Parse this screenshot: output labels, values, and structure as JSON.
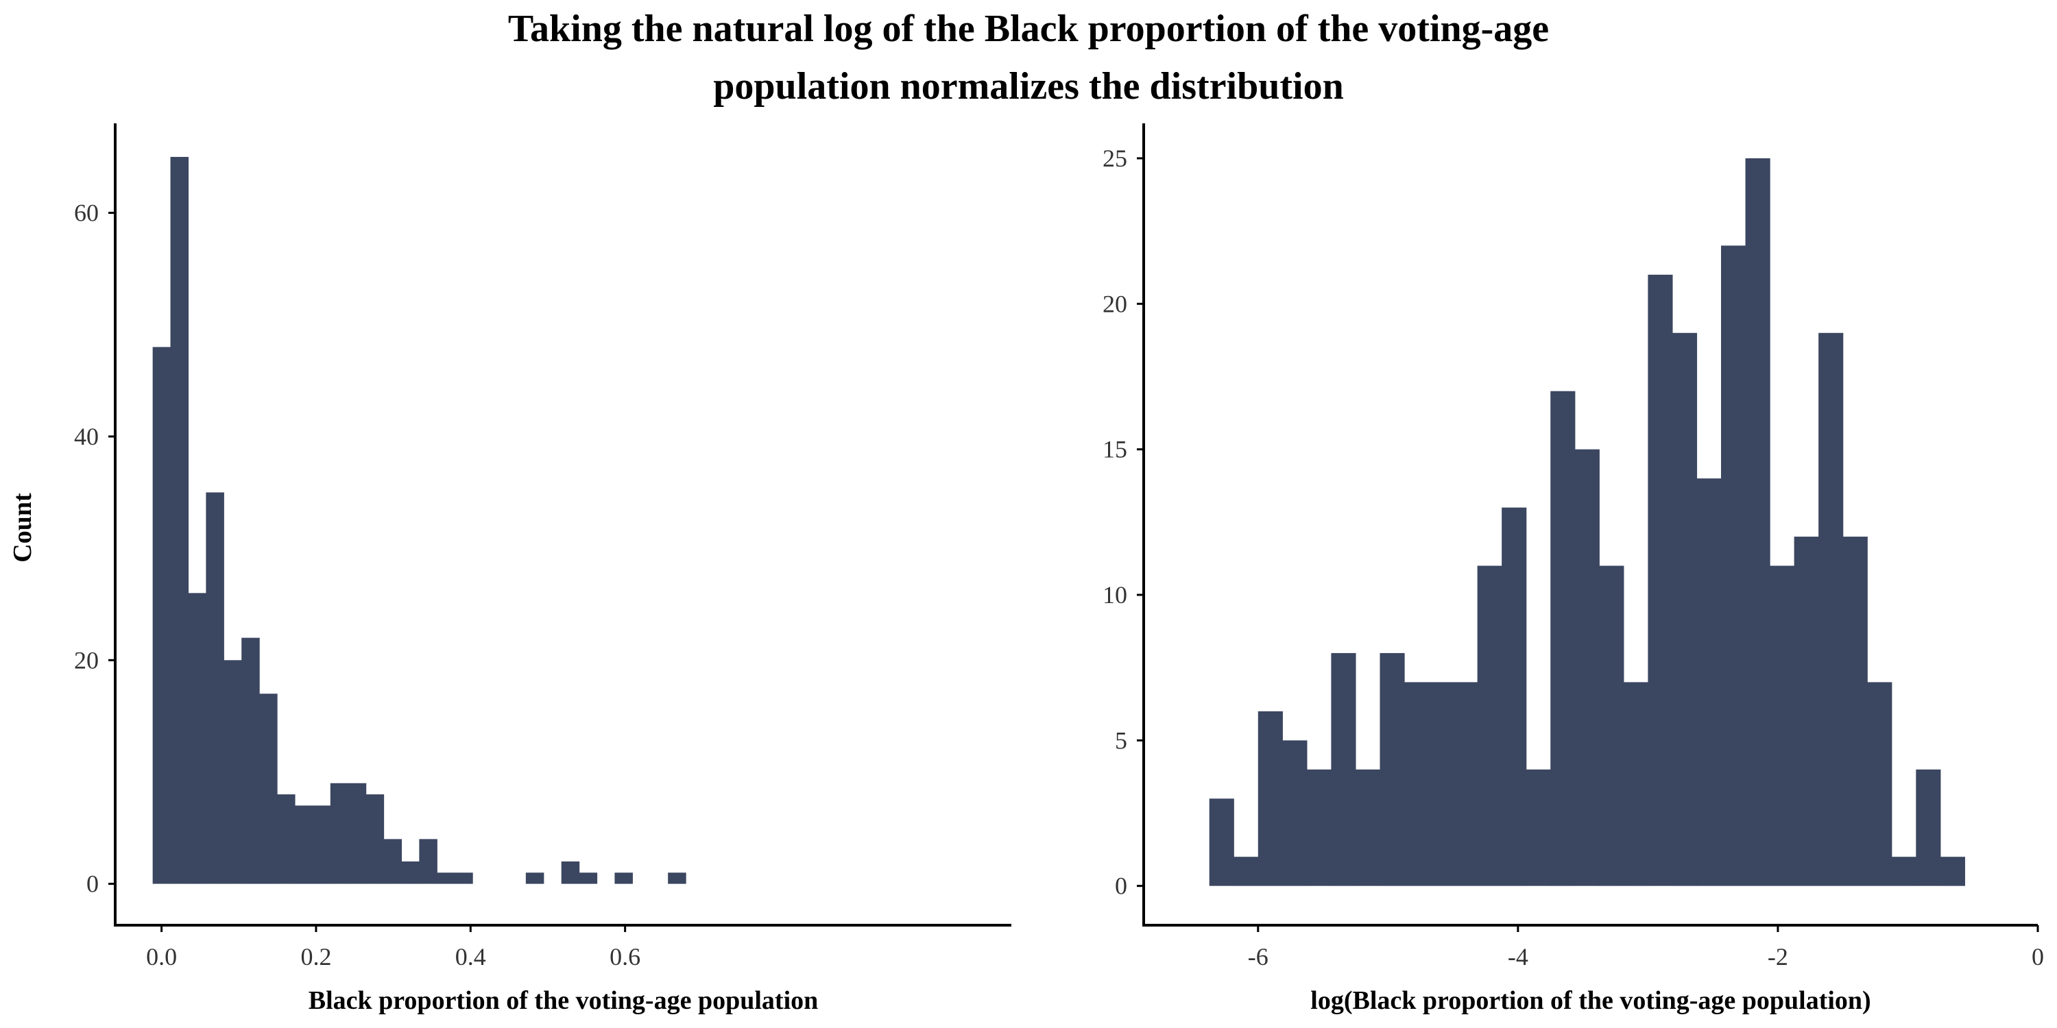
{
  "title_line1": "Taking the natural log of the Black proportion of the voting-age",
  "title_line2": "population normalizes the distribution",
  "colors": {
    "bar": "#3b4660",
    "axis": "#000000",
    "tick_text": "#333333"
  },
  "chart_data": [
    {
      "type": "bar",
      "histogram": true,
      "xlabel": "Black proportion of the voting-age population",
      "ylabel": "Count",
      "xlim": [
        -0.06,
        1.1
      ],
      "ylim": [
        -3.7,
        68
      ],
      "xticks": [
        0.0,
        0.2,
        0.4,
        0.6
      ],
      "xtick_labels": [
        "0.0",
        "0.2",
        "0.4",
        "0.6"
      ],
      "yticks": [
        0,
        20,
        40,
        60
      ],
      "ytick_labels": [
        "0",
        "20",
        "40",
        "60"
      ],
      "bin_start": -0.0115,
      "bin_width": 0.023,
      "values": [
        48,
        65,
        26,
        35,
        20,
        22,
        17,
        8,
        7,
        7,
        9,
        9,
        8,
        4,
        2,
        4,
        1,
        1,
        0,
        0,
        0,
        1,
        0,
        2,
        1,
        0,
        1,
        0,
        0,
        1
      ],
      "grid": false
    },
    {
      "type": "bar",
      "histogram": true,
      "xlabel": "log(Black proportion of the voting-age population)",
      "ylabel": "",
      "xlim": [
        -6.88,
        0.0
      ],
      "ylim": [
        -1.35,
        26.2
      ],
      "xticks": [
        -6,
        -4,
        -2,
        0
      ],
      "xtick_labels": [
        "-6",
        "-4",
        "-2",
        "0"
      ],
      "yticks": [
        0,
        5,
        10,
        15,
        20,
        25
      ],
      "ytick_labels": [
        "0",
        "5",
        "10",
        "15",
        "20",
        "25"
      ],
      "bin_start": -6.375,
      "bin_width": 0.1875,
      "values": [
        3,
        1,
        6,
        5,
        4,
        8,
        4,
        8,
        7,
        7,
        7,
        11,
        13,
        4,
        17,
        15,
        11,
        7,
        21,
        19,
        14,
        22,
        25,
        11,
        12,
        19,
        12,
        7,
        1,
        4,
        1
      ],
      "grid": false
    }
  ]
}
